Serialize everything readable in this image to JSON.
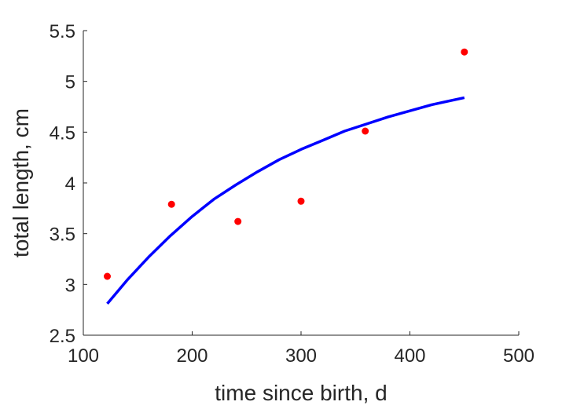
{
  "chart_data": {
    "type": "scatter",
    "xlabel": "time since birth, d",
    "ylabel": "total length, cm",
    "xlim": [
      100,
      500
    ],
    "ylim": [
      2.5,
      5.5
    ],
    "xticks": [
      "100",
      "200",
      "300",
      "400",
      "500"
    ],
    "yticks": [
      "2.5",
      "3",
      "3.5",
      "4",
      "4.5",
      "5",
      "5.5"
    ],
    "grid": false,
    "series": [
      {
        "type": "scatter",
        "color": "#ff0000",
        "points": [
          {
            "x": 122,
            "y": 3.08
          },
          {
            "x": 181,
            "y": 3.79
          },
          {
            "x": 242,
            "y": 3.62
          },
          {
            "x": 300,
            "y": 3.82
          },
          {
            "x": 359,
            "y": 4.51
          },
          {
            "x": 450,
            "y": 5.29
          }
        ]
      },
      {
        "type": "line",
        "color": "#0000ff",
        "points": [
          {
            "x": 122,
            "y": 2.81
          },
          {
            "x": 140,
            "y": 3.04
          },
          {
            "x": 160,
            "y": 3.27
          },
          {
            "x": 180,
            "y": 3.48
          },
          {
            "x": 200,
            "y": 3.67
          },
          {
            "x": 220,
            "y": 3.84
          },
          {
            "x": 240,
            "y": 3.98
          },
          {
            "x": 260,
            "y": 4.11
          },
          {
            "x": 280,
            "y": 4.23
          },
          {
            "x": 300,
            "y": 4.33
          },
          {
            "x": 320,
            "y": 4.42
          },
          {
            "x": 340,
            "y": 4.51
          },
          {
            "x": 360,
            "y": 4.58
          },
          {
            "x": 380,
            "y": 4.65
          },
          {
            "x": 400,
            "y": 4.71
          },
          {
            "x": 420,
            "y": 4.77
          },
          {
            "x": 450,
            "y": 4.84
          }
        ]
      }
    ]
  }
}
